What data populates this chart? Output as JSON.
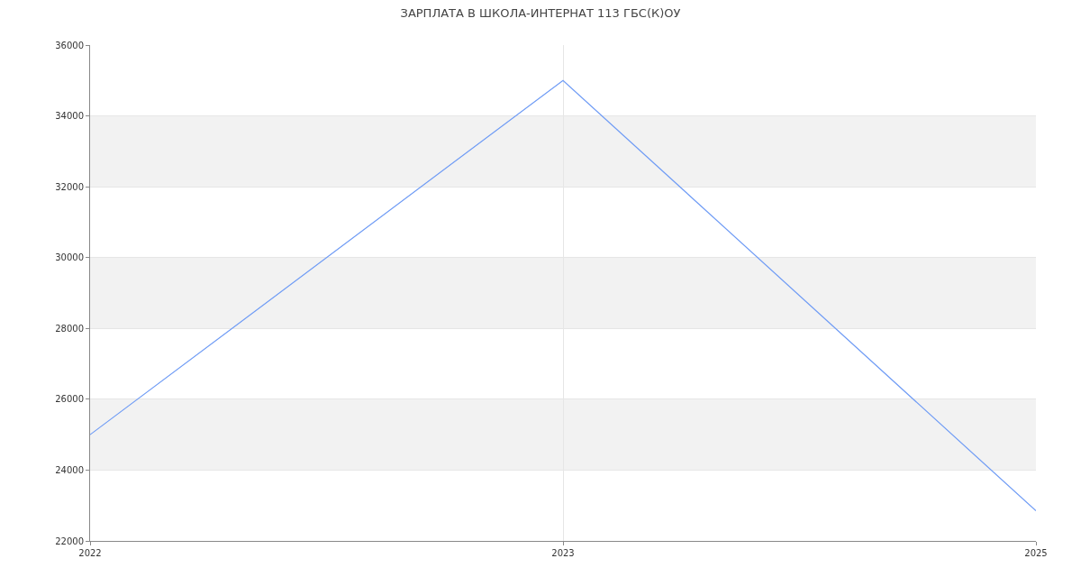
{
  "chart_data": {
    "type": "line",
    "title": "ЗАРПЛАТА В ШКОЛА-ИНТЕРНАТ 113 ГБС(К)ОУ",
    "categories": [
      "2022",
      "2023",
      "2025"
    ],
    "series": [
      {
        "color": "#6e9bf5",
        "values": [
          25000,
          35000,
          22850
        ]
      }
    ],
    "ylim": [
      22000,
      36000
    ],
    "yticks": [
      22000,
      24000,
      26000,
      28000,
      30000,
      32000,
      34000,
      36000
    ],
    "bands": [
      {
        "axis": "y",
        "from": 24000,
        "to": 26000,
        "color": "#f2f2f2"
      },
      {
        "axis": "y",
        "from": 28000,
        "to": 30000,
        "color": "#f2f2f2"
      },
      {
        "axis": "y",
        "from": 32000,
        "to": 34000,
        "color": "#f2f2f2"
      }
    ],
    "grid": true,
    "marker": "none",
    "line_style": "solid"
  }
}
